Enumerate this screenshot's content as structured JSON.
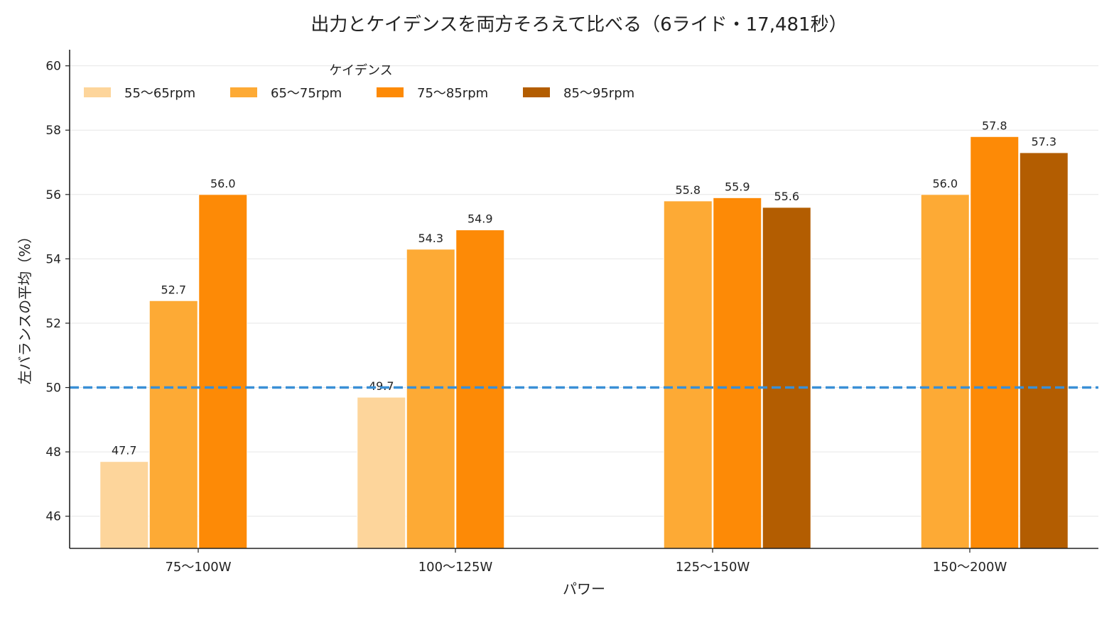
{
  "chart_data": {
    "type": "bar",
    "title": "出力とケイデンスを両方そろえて比べる（6ライド・17,481秒）",
    "xlabel": "パワー",
    "ylabel": "左バランスの平均（%）",
    "categories": [
      "75〜100W",
      "100〜125W",
      "125〜150W",
      "150〜200W"
    ],
    "ylim": [
      45,
      60.5
    ],
    "yticks": [
      46,
      48,
      50,
      52,
      54,
      56,
      58,
      60
    ],
    "grid": "horizontal",
    "legend": {
      "title": "ケイデンス",
      "placement": "top-left"
    },
    "reference_line": {
      "y": 50,
      "style": "dashed",
      "color": "#3a8fd6"
    },
    "series": [
      {
        "name": "55〜65rpm",
        "color": "#fdd59b",
        "values": [
          47.7,
          49.7,
          null,
          null
        ],
        "labels": [
          "47.7",
          "49.7",
          "",
          ""
        ]
      },
      {
        "name": "65〜75rpm",
        "color": "#fdaa35",
        "values": [
          52.7,
          54.3,
          55.8,
          56.0
        ],
        "labels": [
          "52.7",
          "54.3",
          "55.8",
          "56.0"
        ]
      },
      {
        "name": "75〜85rpm",
        "color": "#fd8a06",
        "values": [
          56.0,
          54.9,
          55.9,
          57.8
        ],
        "labels": [
          "56.0",
          "54.9",
          "55.9",
          "57.8"
        ]
      },
      {
        "name": "85〜95rpm",
        "color": "#b35d01",
        "values": [
          null,
          null,
          55.6,
          57.3
        ],
        "labels": [
          "",
          "",
          "55.6",
          "57.3"
        ]
      }
    ]
  }
}
